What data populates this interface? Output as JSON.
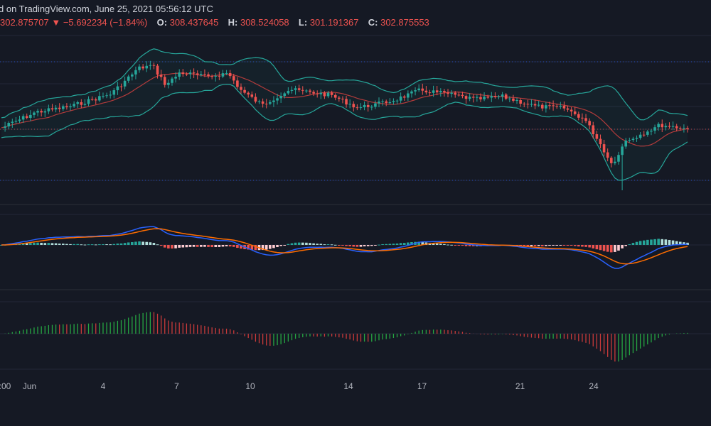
{
  "header": {
    "source_text": "d on TradingView.com, June 25, 2021 05:56:12 UTC",
    "price": "302.875707",
    "change_arrow": "▼",
    "change": "−5.692234 (−1.84%)",
    "o_label": "O:",
    "o_value": "308.437645",
    "h_label": "H:",
    "h_value": "308.524058",
    "l_label": "L:",
    "l_value": "301.191367",
    "c_label": "C:",
    "c_value": "302.875553"
  },
  "colors": {
    "background": "#151924",
    "up": "#26a69a",
    "down": "#ef5350",
    "bb_band": "#26a69a",
    "bb_basis": "#b23b3b",
    "macd_line": "#2962ff",
    "signal_line": "#ff6d00",
    "ao_up": "#26a642",
    "ao_down": "#c93a3a"
  },
  "x_ticks": [
    {
      "label": ":00",
      "day": 0
    },
    {
      "label": "Jun",
      "day": 1
    },
    {
      "label": "4",
      "day": 4
    },
    {
      "label": "7",
      "day": 7
    },
    {
      "label": "10",
      "day": 10
    },
    {
      "label": "14",
      "day": 14
    },
    {
      "label": "17",
      "day": 17
    },
    {
      "label": "21",
      "day": 21
    },
    {
      "label": "24",
      "day": 24
    }
  ],
  "chart_data": {
    "type": "candlestick",
    "x_start": "May 29, 2021 00:00",
    "x_end": "June 25, 2021",
    "panels": [
      {
        "name": "price",
        "indicator": "bollinger_bands"
      },
      {
        "name": "macd",
        "indicator": "macd_histogram"
      },
      {
        "name": "oscillator",
        "indicator": "awesome_oscillator"
      }
    ],
    "last_close": 302.875553
  }
}
